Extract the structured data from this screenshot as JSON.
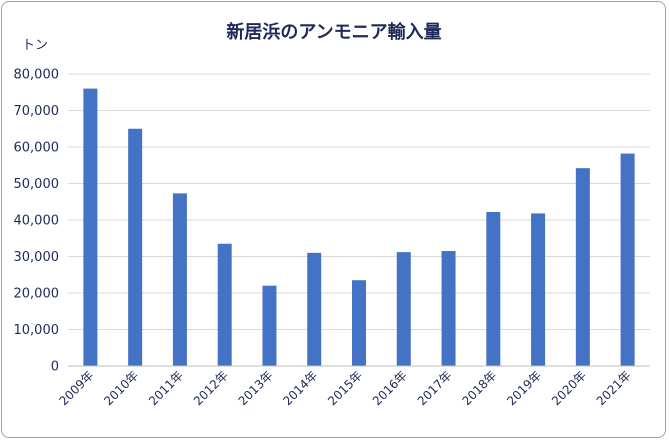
{
  "chart_data": {
    "type": "bar",
    "title": "新居浜のアンモニア輸入量",
    "ylabel": "トン",
    "xlabel": "",
    "ylim": [
      0,
      80000
    ],
    "y_ticks": [
      "0",
      "10,000",
      "20,000",
      "30,000",
      "40,000",
      "50,000",
      "60,000",
      "70,000",
      "80,000"
    ],
    "categories": [
      "2009年",
      "2010年",
      "2011年",
      "2012年",
      "2013年",
      "2014年",
      "2015年",
      "2016年",
      "2017年",
      "2018年",
      "2019年",
      "2020年",
      "2021年"
    ],
    "values": [
      76000,
      65000,
      47300,
      33500,
      22000,
      31000,
      23500,
      31200,
      31500,
      42200,
      41800,
      54200,
      58200
    ],
    "bar_color": "#4472c4",
    "grid": true,
    "legend": "none"
  }
}
